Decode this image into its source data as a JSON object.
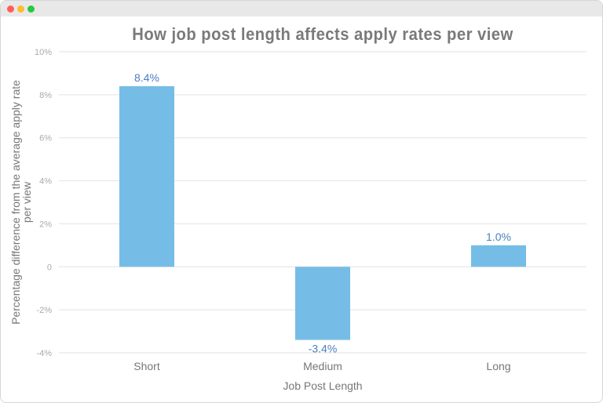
{
  "window": {
    "controls": {
      "close": "#ff5f57",
      "minimize": "#febc2e",
      "zoom": "#28c840"
    }
  },
  "chart_data": {
    "type": "bar",
    "title": "How job post length affects apply rates per view",
    "xlabel": "Job Post Length",
    "ylabel": "Percentage difference from the average apply rate per view",
    "ylabel_lines": [
      "Percentage difference from the average apply rate",
      "per view"
    ],
    "categories": [
      "Short",
      "Medium",
      "Long"
    ],
    "values": [
      8.4,
      -3.4,
      1.0
    ],
    "data_labels": [
      "8.4%",
      "-3.4%",
      "1.0%"
    ],
    "ylim": [
      -4,
      10
    ],
    "yticks": [
      -4,
      -2,
      0,
      2,
      4,
      6,
      8,
      10
    ],
    "ytick_labels": [
      "-4%",
      "-2%",
      "0",
      "2%",
      "4%",
      "6%",
      "8%",
      "10%"
    ],
    "grid": true,
    "bar_color": "#75bde6",
    "label_color": "#4a7fc1"
  }
}
